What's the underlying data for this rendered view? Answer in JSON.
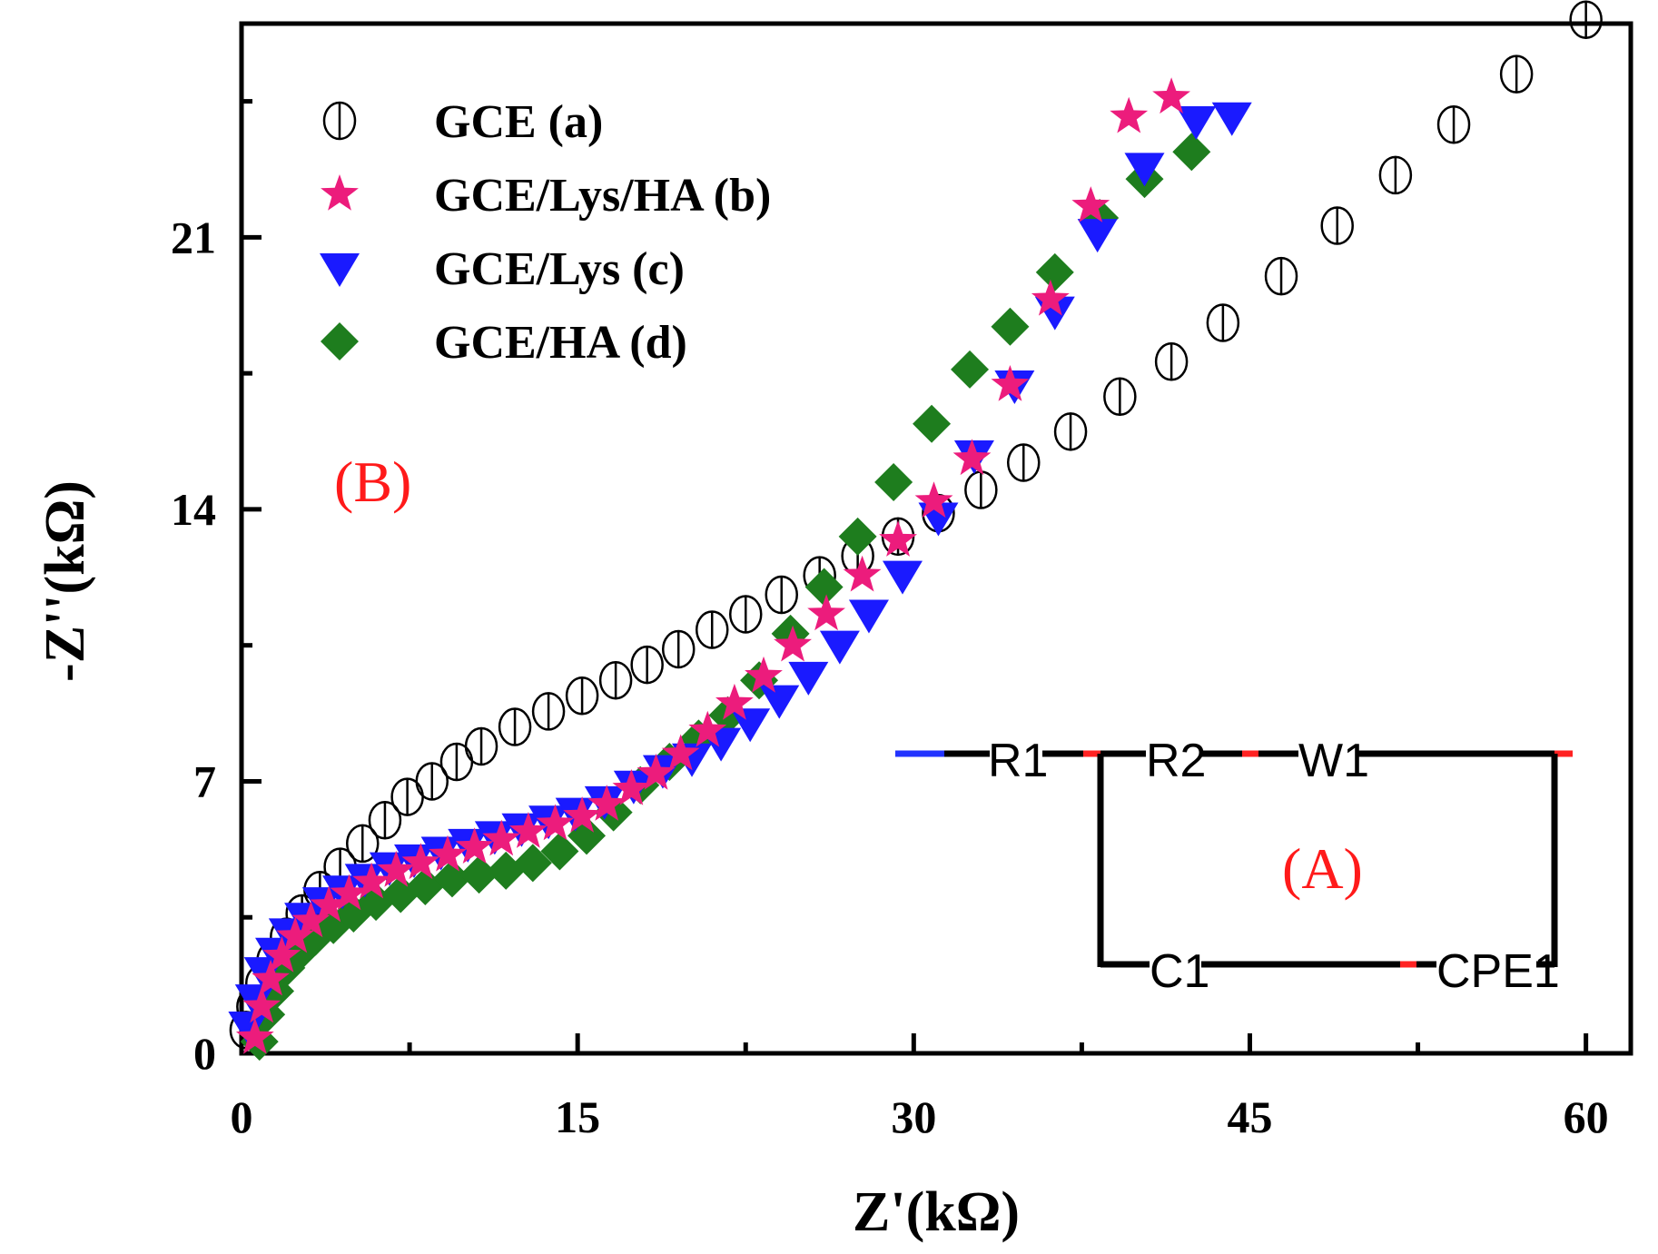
{
  "colors": {
    "gce": "#000000",
    "gce_lys_ha": "#ec1c7c",
    "gce_lys": "#1a1aff",
    "gce_ha": "#1e7d1e",
    "label_red": "#ff1a1a",
    "circuit_blue": "#2233ff",
    "circuit_red": "#ff2222"
  },
  "panel_labels": {
    "main": "(B)",
    "inset": "(A)"
  },
  "circuit": {
    "elements": [
      "R1",
      "R2",
      "W1",
      "C1",
      "CPE1"
    ]
  },
  "chart_data": {
    "type": "scatter",
    "title": "",
    "xlabel": "Z'(kΩ)",
    "ylabel": "-Z''(kΩ)",
    "xlim": [
      0,
      62
    ],
    "ylim": [
      0,
      26.5
    ],
    "xticks": [
      0,
      15,
      30,
      45,
      60
    ],
    "yticks": [
      0,
      7,
      14,
      21
    ],
    "grid": false,
    "legend_position": "top-left",
    "series": [
      {
        "name": "GCE (a)",
        "marker": "circle-bar",
        "color_key": "gce",
        "x": [
          0.2,
          0.5,
          0.9,
          1.4,
          2.0,
          2.7,
          3.5,
          4.4,
          5.4,
          6.4,
          7.4,
          8.5,
          9.6,
          10.7,
          12.2,
          13.7,
          15.2,
          16.7,
          18.1,
          19.5,
          21.0,
          22.5,
          24.1,
          25.8,
          27.5,
          29.3,
          31.1,
          33.0,
          34.9,
          37.0,
          39.2,
          41.5,
          43.8,
          46.4,
          48.9,
          51.5,
          54.1,
          56.9,
          60.0
        ],
        "y": [
          0.6,
          1.2,
          1.8,
          2.4,
          3.0,
          3.6,
          4.2,
          4.8,
          5.4,
          6.0,
          6.6,
          7.0,
          7.5,
          7.9,
          8.4,
          8.8,
          9.2,
          9.6,
          10.0,
          10.4,
          10.9,
          11.3,
          11.8,
          12.3,
          12.8,
          13.3,
          13.9,
          14.5,
          15.2,
          16.0,
          16.9,
          17.8,
          18.8,
          20.0,
          21.3,
          22.6,
          23.9,
          25.2,
          26.6
        ]
      },
      {
        "name": "GCE/Lys/HA (b)",
        "marker": "star",
        "color_key": "gce_lys_ha",
        "x": [
          0.6,
          0.9,
          1.3,
          1.8,
          2.4,
          3.1,
          3.9,
          4.8,
          5.8,
          6.9,
          8.0,
          9.2,
          10.4,
          11.6,
          12.8,
          14.0,
          15.2,
          16.3,
          17.4,
          18.5,
          19.6,
          20.8,
          22.0,
          23.3,
          24.6,
          26.1,
          27.7,
          29.3,
          30.9,
          32.6,
          34.3,
          36.1,
          37.9,
          39.6,
          41.5
        ],
        "y": [
          0.4,
          1.2,
          1.9,
          2.5,
          3.0,
          3.4,
          3.8,
          4.1,
          4.4,
          4.7,
          4.9,
          5.1,
          5.3,
          5.5,
          5.7,
          5.9,
          6.1,
          6.4,
          6.8,
          7.2,
          7.7,
          8.3,
          9.0,
          9.7,
          10.5,
          11.3,
          12.3,
          13.2,
          14.2,
          15.3,
          17.2,
          19.4,
          21.8,
          24.1,
          24.6
        ]
      },
      {
        "name": "GCE/Lys (c)",
        "marker": "triangle-down",
        "color_key": "gce_lys",
        "x": [
          0.3,
          0.6,
          1.0,
          1.5,
          2.1,
          2.8,
          3.6,
          4.5,
          5.5,
          6.6,
          7.7,
          8.9,
          10.1,
          11.3,
          12.5,
          13.7,
          14.9,
          16.2,
          17.5,
          18.8,
          20.1,
          21.4,
          22.7,
          24.0,
          25.3,
          26.7,
          28.0,
          29.5,
          31.1,
          32.7,
          34.5,
          36.3,
          38.2,
          40.3,
          42.6,
          44.2
        ],
        "y": [
          0.7,
          1.4,
          2.1,
          2.6,
          3.1,
          3.5,
          3.9,
          4.2,
          4.5,
          4.8,
          5.0,
          5.2,
          5.4,
          5.6,
          5.8,
          6.0,
          6.2,
          6.5,
          6.9,
          7.3,
          7.6,
          8.0,
          8.5,
          9.1,
          9.7,
          10.5,
          11.3,
          12.3,
          13.8,
          15.4,
          17.2,
          19.1,
          21.1,
          22.8,
          24.0,
          24.1
        ]
      },
      {
        "name": "GCE/HA (d)",
        "marker": "diamond",
        "color_key": "gce_ha",
        "x": [
          0.8,
          1.1,
          1.5,
          2.0,
          2.6,
          3.3,
          4.1,
          5.0,
          6.0,
          7.1,
          8.2,
          9.4,
          10.6,
          11.8,
          13.0,
          14.2,
          15.4,
          16.6,
          17.8,
          19.1,
          20.4,
          21.7,
          23.1,
          24.5,
          26.0,
          27.5,
          29.1,
          30.8,
          32.5,
          34.3,
          36.3,
          38.3,
          40.3,
          42.4
        ],
        "y": [
          0.3,
          1.0,
          1.6,
          2.2,
          2.6,
          3.0,
          3.3,
          3.6,
          3.9,
          4.1,
          4.3,
          4.5,
          4.6,
          4.7,
          4.9,
          5.2,
          5.6,
          6.2,
          6.9,
          7.5,
          8.1,
          8.7,
          9.6,
          10.8,
          12.0,
          13.3,
          14.7,
          16.2,
          17.6,
          18.7,
          20.1,
          21.5,
          22.5,
          23.2
        ]
      }
    ]
  }
}
